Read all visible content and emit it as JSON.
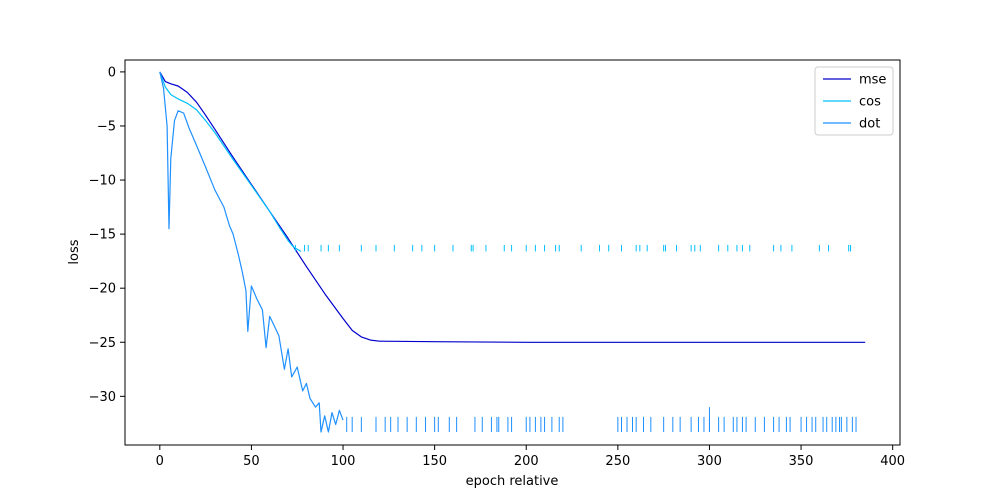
{
  "chart_data": {
    "type": "line",
    "title": "",
    "xlabel": "epoch relative",
    "ylabel": "loss",
    "xlim": [
      -19,
      404
    ],
    "ylim": [
      -34.5,
      1.1
    ],
    "xticks": [
      0,
      50,
      100,
      150,
      200,
      250,
      300,
      350,
      400
    ],
    "yticks": [
      0,
      -5,
      -10,
      -15,
      -20,
      -25,
      -30
    ],
    "grid": false,
    "legend": "top-right",
    "series": [
      {
        "name": "mse",
        "color": "#0000cd",
        "points": [
          [
            0,
            0
          ],
          [
            3,
            -0.9
          ],
          [
            6,
            -1.1
          ],
          [
            10,
            -1.3
          ],
          [
            15,
            -1.9
          ],
          [
            20,
            -2.8
          ],
          [
            25,
            -4.0
          ],
          [
            30,
            -5.3
          ],
          [
            40,
            -7.9
          ],
          [
            50,
            -10.4
          ],
          [
            60,
            -12.9
          ],
          [
            70,
            -15.4
          ],
          [
            80,
            -18.0
          ],
          [
            90,
            -20.5
          ],
          [
            100,
            -22.8
          ],
          [
            105,
            -23.9
          ],
          [
            110,
            -24.5
          ],
          [
            115,
            -24.8
          ],
          [
            120,
            -24.9
          ],
          [
            150,
            -24.95
          ],
          [
            200,
            -25.0
          ],
          [
            250,
            -25.0
          ],
          [
            300,
            -25.0
          ],
          [
            350,
            -25.0
          ],
          [
            385,
            -25.0
          ]
        ]
      },
      {
        "name": "cos",
        "color": "#00bfff",
        "points": [
          [
            0,
            0
          ],
          [
            3,
            -1.4
          ],
          [
            6,
            -2.1
          ],
          [
            10,
            -2.5
          ],
          [
            15,
            -2.9
          ],
          [
            20,
            -3.5
          ],
          [
            25,
            -4.5
          ],
          [
            30,
            -5.6
          ],
          [
            40,
            -8.1
          ],
          [
            50,
            -10.5
          ],
          [
            60,
            -12.9
          ],
          [
            65,
            -14.3
          ],
          [
            70,
            -15.6
          ],
          [
            73,
            -16.2
          ],
          [
            77,
            -16.6
          ]
        ],
        "sparse_x": [
          74,
          79,
          81,
          88,
          92,
          98,
          110,
          118,
          128,
          138,
          143,
          150,
          160,
          170,
          171,
          178,
          188,
          192,
          200,
          205,
          210,
          216,
          218,
          230,
          240,
          245,
          252,
          260,
          262,
          266,
          275,
          276,
          282,
          290,
          292,
          295,
          305,
          310,
          315,
          318,
          322,
          335,
          339,
          345,
          360,
          365,
          376,
          377
        ],
        "sparse_y": [
          -16.6,
          -16.0
        ]
      },
      {
        "name": "dot",
        "color": "#1e90ff",
        "points": [
          [
            0,
            0
          ],
          [
            2,
            -1.5
          ],
          [
            4,
            -5
          ],
          [
            5,
            -14.5
          ],
          [
            6,
            -8
          ],
          [
            8,
            -4.5
          ],
          [
            10,
            -3.6
          ],
          [
            13,
            -3.8
          ],
          [
            16,
            -5.2
          ],
          [
            20,
            -6.8
          ],
          [
            25,
            -8.8
          ],
          [
            30,
            -10.9
          ],
          [
            35,
            -12.5
          ],
          [
            38,
            -14.2
          ],
          [
            40,
            -15.0
          ],
          [
            43,
            -17.0
          ],
          [
            45,
            -18.5
          ],
          [
            47,
            -20.2
          ],
          [
            48,
            -24
          ],
          [
            50,
            -19.8
          ],
          [
            53,
            -21.0
          ],
          [
            56,
            -22.0
          ],
          [
            58,
            -25.5
          ],
          [
            60,
            -22.6
          ],
          [
            65,
            -24.4
          ],
          [
            68,
            -27.5
          ],
          [
            70,
            -25.6
          ],
          [
            72,
            -28.2
          ],
          [
            75,
            -27.3
          ],
          [
            78,
            -29.5
          ],
          [
            80,
            -28.8
          ],
          [
            82,
            -30.2
          ],
          [
            85,
            -31.0
          ],
          [
            87,
            -30.6
          ],
          [
            88,
            -33.3
          ],
          [
            90,
            -31.8
          ],
          [
            92,
            -33.3
          ],
          [
            94,
            -31.5
          ],
          [
            96,
            -32.6
          ],
          [
            98,
            -31.3
          ],
          [
            100,
            -32.2
          ]
        ],
        "sparse_x": [
          102,
          105,
          110,
          118,
          123,
          126,
          130,
          135,
          140,
          145,
          150,
          152,
          158,
          162,
          172,
          176,
          181,
          184,
          185,
          190,
          192,
          200,
          202,
          205,
          208,
          210,
          214,
          218,
          220,
          250,
          252,
          255,
          258,
          260,
          264,
          268,
          275,
          280,
          284,
          290,
          294,
          297,
          300,
          305,
          308,
          313,
          315,
          318,
          320,
          325,
          330,
          335,
          338,
          342,
          344,
          350,
          353,
          356,
          358,
          362,
          364,
          367,
          369,
          371,
          372,
          375,
          378,
          380
        ],
        "sparse_y": [
          -33.3,
          -31.9
        ],
        "sparse_tall_x": [
          300
        ],
        "sparse_tall_y": [
          -33.3,
          -31.0
        ]
      }
    ]
  }
}
